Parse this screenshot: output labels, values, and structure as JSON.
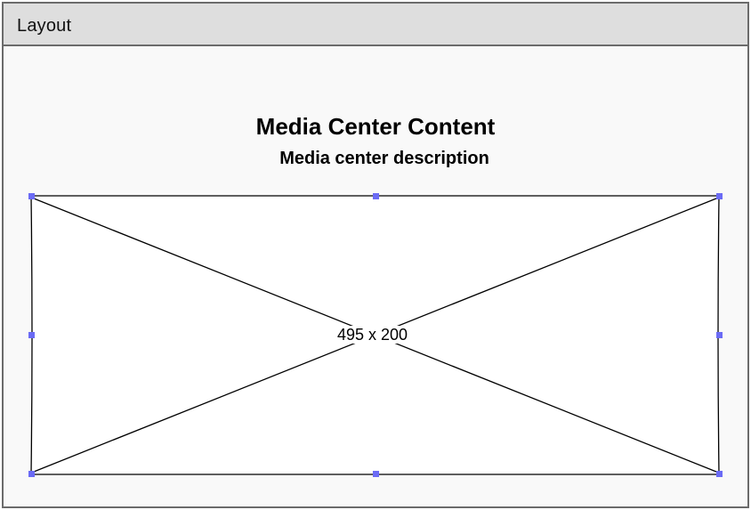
{
  "window": {
    "title": "Layout"
  },
  "content": {
    "heading": "Media Center Content",
    "description": "Media center description"
  },
  "image_placeholder": {
    "size_label": "495 x 200",
    "handle_color": "#6b6bf5",
    "stroke_color": "#000000"
  }
}
